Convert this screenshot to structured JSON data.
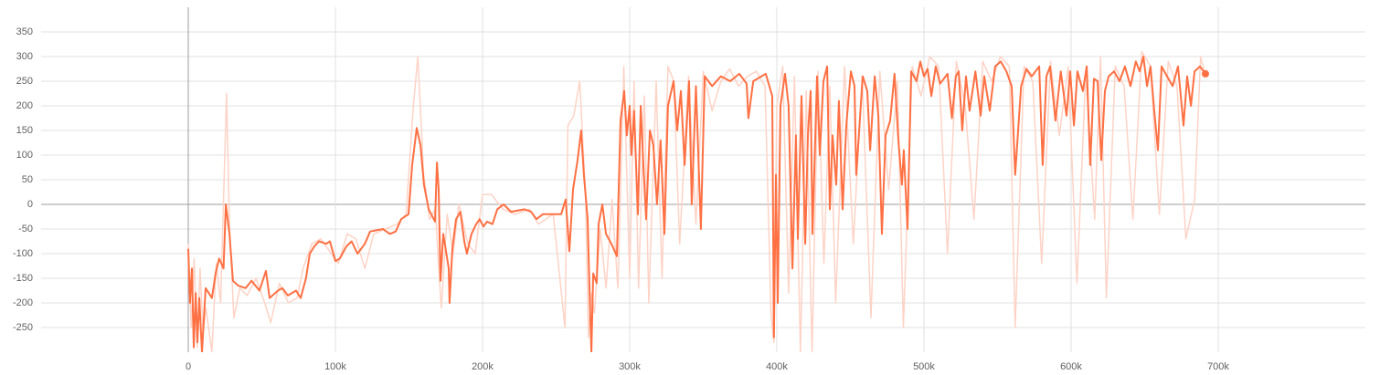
{
  "chart_data": {
    "type": "line",
    "xlim": [
      -100000,
      800000
    ],
    "ylim": [
      -300,
      400
    ],
    "xticks": [
      {
        "value": 0,
        "label": "0"
      },
      {
        "value": 100000,
        "label": "100k"
      },
      {
        "value": 200000,
        "label": "200k"
      },
      {
        "value": 300000,
        "label": "300k"
      },
      {
        "value": 400000,
        "label": "400k"
      },
      {
        "value": 500000,
        "label": "500k"
      },
      {
        "value": 600000,
        "label": "600k"
      },
      {
        "value": 700000,
        "label": "700k"
      }
    ],
    "yticks": [
      -250,
      -200,
      -150,
      -100,
      -50,
      0,
      50,
      100,
      150,
      200,
      250,
      300,
      350
    ],
    "grid": true,
    "series": [
      {
        "color": "#fdd3c6",
        "x": [
          0,
          2000,
          4000,
          6000,
          8000,
          10000,
          12000,
          16000,
          19000,
          22000,
          26000,
          28000,
          31000,
          35000,
          40000,
          46000,
          52000,
          56000,
          62000,
          68000,
          74000,
          78000,
          84000,
          90000,
          96000,
          102000,
          108000,
          114000,
          120000,
          126000,
          134000,
          142000,
          148000,
          153000,
          156000,
          160000,
          164000,
          168000,
          170000,
          172000,
          176000,
          180000,
          184000,
          190000,
          195000,
          200000,
          206000,
          214000,
          222000,
          232000,
          238000,
          248000,
          256000,
          258000,
          262000,
          266000,
          270000,
          272000,
          274000,
          276000,
          280000,
          284000,
          288000,
          292000,
          296000,
          300000,
          303000,
          306000,
          310000,
          313000,
          318000,
          322000,
          326000,
          330000,
          334000,
          340000,
          345000,
          350000,
          356000,
          362000,
          368000,
          374000,
          380000,
          386000,
          392000,
          396000,
          398000,
          400000,
          404000,
          408000,
          412000,
          416000,
          420000,
          424000,
          428000,
          432000,
          436000,
          440000,
          446000,
          452000,
          458000,
          464000,
          470000,
          476000,
          482000,
          486000,
          492000,
          498000,
          504000,
          510000,
          516000,
          522000,
          528000,
          534000,
          540000,
          546000,
          552000,
          558000,
          562000,
          568000,
          574000,
          580000,
          586000,
          592000,
          598000,
          604000,
          610000,
          616000,
          620000,
          624000,
          630000,
          636000,
          642000,
          648000,
          654000,
          660000,
          666000,
          672000,
          678000,
          684000,
          688000,
          691000
        ],
        "values": [
          -80,
          -250,
          -110,
          -290,
          -130,
          -260,
          -210,
          -300,
          -120,
          -200,
          225,
          -40,
          -230,
          -170,
          -185,
          -150,
          -200,
          -240,
          -160,
          -200,
          -190,
          -130,
          -80,
          -70,
          -95,
          -120,
          -60,
          -70,
          -130,
          -60,
          -50,
          -40,
          -20,
          200,
          300,
          60,
          -30,
          -10,
          -120,
          -210,
          -20,
          -100,
          0,
          -80,
          -100,
          20,
          20,
          -10,
          -20,
          -10,
          -40,
          -20,
          -250,
          160,
          180,
          250,
          20,
          -270,
          -180,
          -220,
          -50,
          -170,
          10,
          -170,
          280,
          -150,
          250,
          -170,
          220,
          -200,
          250,
          -150,
          280,
          250,
          -80,
          260,
          -40,
          270,
          190,
          250,
          275,
          240,
          260,
          270,
          240,
          -220,
          -280,
          200,
          280,
          -180,
          260,
          -300,
          230,
          -300,
          270,
          -120,
          240,
          -200,
          280,
          -80,
          260,
          -230,
          270,
          30,
          250,
          -250,
          280,
          220,
          300,
          280,
          -100,
          290,
          200,
          -30,
          290,
          250,
          300,
          280,
          -250,
          280,
          250,
          -120,
          290,
          140,
          280,
          -160,
          270,
          -30,
          300,
          -190,
          280,
          240,
          -30,
          310,
          280,
          -20,
          290,
          240,
          -70,
          10,
          300,
          265
        ]
      },
      {
        "color": "#ff7043",
        "x": [
          0,
          1200,
          2500,
          3700,
          5000,
          6200,
          7500,
          9300,
          11800,
          16100,
          18600,
          21000,
          24000,
          25500,
          28000,
          30400,
          34000,
          39000,
          43000,
          48400,
          52800,
          55300,
          61000,
          64000,
          67700,
          73300,
          76400,
          80000,
          82600,
          85700,
          88800,
          93800,
          96300,
          100000,
          103000,
          107500,
          111000,
          115000,
          120000,
          123600,
          132300,
          137000,
          141000,
          144700,
          149700,
          152200,
          155300,
          157800,
          160200,
          163400,
          167700,
          169000,
          170200,
          171400,
          173300,
          177000,
          177600,
          179500,
          182000,
          185000,
          187600,
          189400,
          192500,
          195700,
          198000,
          200600,
          203000,
          206800,
          210000,
          214300,
          219300,
          228600,
          233000,
          236600,
          241000,
          253400,
          256500,
          259000,
          261500,
          264600,
          267000,
          268900,
          271400,
          272700,
          274000,
          275200,
          277600,
          278900,
          281400,
          283900,
          287600,
          291300,
          293800,
          296300,
          298100,
          300000,
          301200,
          303000,
          305600,
          307500,
          309300,
          311200,
          313700,
          316100,
          318600,
          321000,
          323600,
          326000,
          329800,
          332300,
          334800,
          337300,
          340400,
          342200,
          345000,
          348400,
          351000,
          356000,
          362000,
          368300,
          374500,
          379500,
          380700,
          384000,
          392500,
          396900,
          398000,
          399400,
          400600,
          402500,
          405600,
          408000,
          410600,
          413000,
          414300,
          416800,
          419300,
          421100,
          423000,
          424200,
          427300,
          429200,
          431700,
          434200,
          436000,
          437900,
          440400,
          442200,
          444700,
          447200,
          450300,
          452800,
          454000,
          458400,
          461500,
          463400,
          466500,
          469000,
          471400,
          473900,
          477000,
          480000,
          482600,
          485000,
          486300,
          488800,
          491300,
          495000,
          497500,
          500000,
          502500,
          505000,
          508000,
          511000,
          516000,
          519000,
          521700,
          523600,
          526000,
          528600,
          531000,
          535000,
          538500,
          541000,
          544700,
          548400,
          552200,
          556000,
          559600,
          562000,
          566000,
          569600,
          573300,
          578300,
          580700,
          583200,
          585700,
          589400,
          593000,
          596900,
          599400,
          601900,
          604300,
          608000,
          610600,
          613000,
          615500,
          618000,
          620500,
          623000,
          625500,
          629200,
          632900,
          636600,
          640400,
          644000,
          646600,
          649100,
          651600,
          654000,
          656500,
          659000,
          661500,
          665200,
          669000,
          672700,
          676400,
          678900,
          681400,
          683900,
          687600,
          691300
        ],
        "values": [
          -90,
          -200,
          -130,
          -290,
          -180,
          -280,
          -190,
          -300,
          -170,
          -190,
          -140,
          -110,
          -130,
          0,
          -60,
          -155,
          -165,
          -170,
          -155,
          -175,
          -135,
          -190,
          -175,
          -170,
          -185,
          -175,
          -190,
          -150,
          -100,
          -85,
          -75,
          -80,
          -75,
          -115,
          -110,
          -85,
          -75,
          -100,
          -80,
          -55,
          -50,
          -60,
          -55,
          -30,
          -20,
          80,
          155,
          120,
          40,
          -10,
          -35,
          85,
          30,
          -155,
          -60,
          -130,
          -200,
          -90,
          -30,
          -15,
          -75,
          -100,
          -60,
          -40,
          -30,
          -45,
          -35,
          -40,
          -10,
          0,
          -15,
          -10,
          -15,
          -30,
          -20,
          -20,
          10,
          -95,
          30,
          90,
          150,
          60,
          -30,
          -170,
          -300,
          -140,
          -160,
          -40,
          0,
          -60,
          -80,
          -105,
          170,
          230,
          140,
          200,
          100,
          190,
          -20,
          200,
          80,
          -30,
          150,
          120,
          0,
          130,
          -60,
          200,
          250,
          150,
          230,
          80,
          250,
          0,
          240,
          -50,
          260,
          240,
          260,
          250,
          265,
          245,
          175,
          250,
          265,
          220,
          -270,
          60,
          -200,
          200,
          265,
          200,
          -130,
          140,
          -70,
          220,
          -80,
          140,
          230,
          -60,
          260,
          100,
          250,
          280,
          -10,
          140,
          40,
          210,
          -10,
          160,
          270,
          240,
          60,
          260,
          230,
          110,
          260,
          180,
          -60,
          140,
          170,
          265,
          130,
          40,
          110,
          -50,
          270,
          250,
          290,
          260,
          275,
          220,
          280,
          245,
          265,
          175,
          260,
          270,
          150,
          260,
          190,
          270,
          180,
          260,
          190,
          280,
          290,
          270,
          240,
          60,
          240,
          275,
          260,
          280,
          80,
          260,
          280,
          170,
          270,
          180,
          270,
          160,
          270,
          230,
          280,
          80,
          255,
          250,
          90,
          230,
          260,
          270,
          250,
          280,
          240,
          290,
          270,
          300,
          240,
          280,
          190,
          110,
          280,
          260,
          240,
          280,
          160,
          260,
          200,
          270,
          280,
          265
        ]
      }
    ]
  }
}
